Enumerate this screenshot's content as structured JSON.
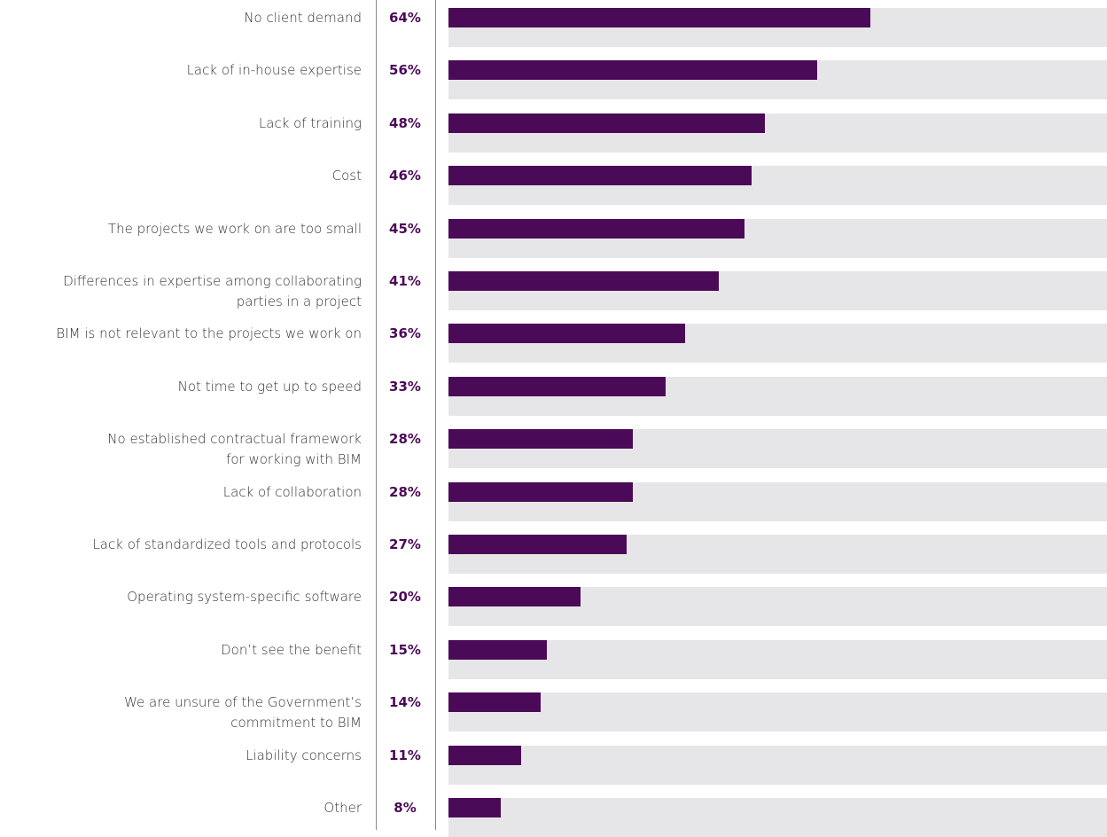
{
  "chart_data": {
    "type": "bar",
    "orientation": "horizontal",
    "categories": [
      "No client demand",
      "Lack of in-house expertise",
      "Lack of training",
      "Cost",
      "The projects we work on are too small",
      "Differences in expertise among collaborating\nparties in a project",
      "BIM is not relevant to the projects we work on",
      "Not time to get up to speed",
      "No established contractual framework\nfor working with BIM",
      "Lack of collaboration",
      "Lack of standardized tools and protocols",
      "Operating system-specific software",
      "Don’t see the benefit",
      "We are unsure of the Government’s\ncommitment to BIM",
      "Liability concerns",
      "Other"
    ],
    "values": [
      64,
      56,
      48,
      46,
      45,
      41,
      36,
      33,
      28,
      28,
      27,
      20,
      15,
      14,
      11,
      8
    ],
    "value_labels": [
      "64%",
      "56%",
      "48%",
      "46%",
      "45%",
      "41%",
      "36%",
      "33%",
      "28%",
      "28%",
      "27%",
      "20%",
      "15%",
      "14%",
      "11%",
      "8%"
    ],
    "xlim": [
      0,
      100
    ],
    "color": "#4b0a57",
    "track_color": "#e6e6e8"
  }
}
